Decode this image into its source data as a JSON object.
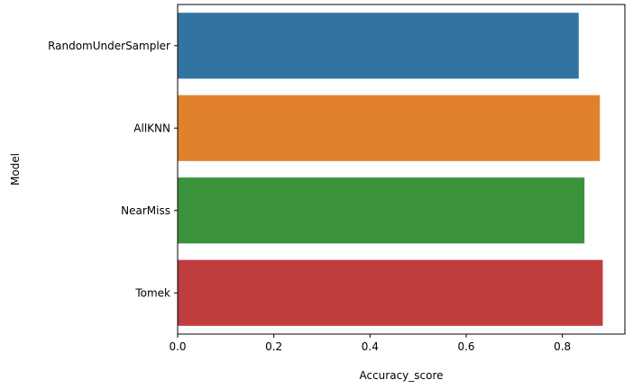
{
  "chart_data": {
    "type": "bar",
    "orientation": "horizontal",
    "categories": [
      "RandomUnderSampler",
      "AllKNN",
      "NearMiss",
      "Tomek"
    ],
    "values": [
      0.834,
      0.878,
      0.846,
      0.884
    ],
    "colors": [
      "#3274a1",
      "#e1812c",
      "#3a923a",
      "#c03d3e"
    ],
    "xlabel": "Accuracy_score",
    "ylabel": "Model",
    "xlim": [
      0,
      0.93
    ],
    "xticks": [
      0,
      0.2,
      0.4,
      0.6,
      0.8
    ],
    "xtick_labels": [
      "0.0",
      "0.2",
      "0.4",
      "0.6",
      "0.8"
    ],
    "grid": false
  }
}
